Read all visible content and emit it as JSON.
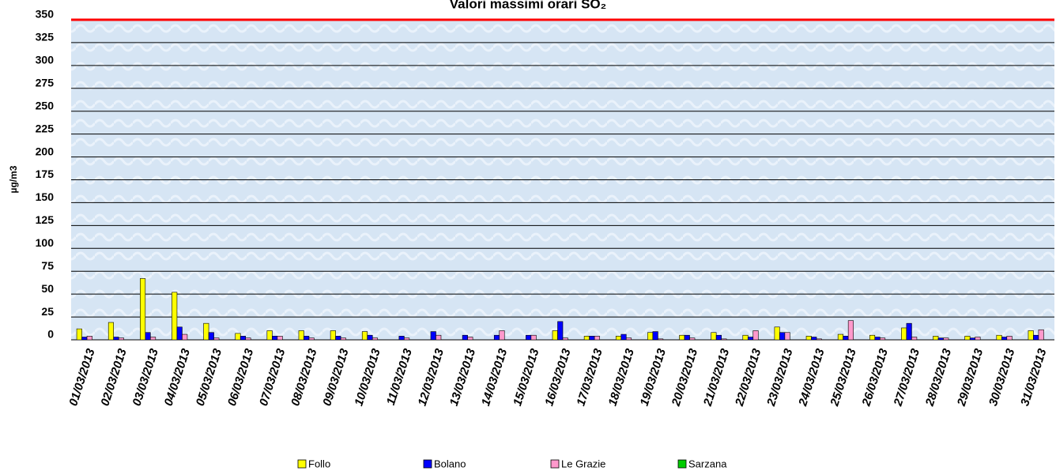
{
  "chart_data": {
    "type": "bar",
    "title": "Valori massimi orari SO₂",
    "y_label": "µg/m3",
    "categories": [
      "01/03/2013",
      "02/03/2013",
      "03/03/2013",
      "04/03/2013",
      "05/03/2013",
      "06/03/2013",
      "07/03/2013",
      "08/03/2013",
      "09/03/2013",
      "10/03/2013",
      "11/03/2013",
      "12/03/2013",
      "13/03/2013",
      "14/03/2013",
      "15/03/2013",
      "16/03/2013",
      "17/03/2013",
      "18/03/2013",
      "19/03/2013",
      "20/03/2013",
      "21/03/2013",
      "22/03/2013",
      "23/03/2013",
      "24/03/2013",
      "25/03/2013",
      "26/03/2013",
      "27/03/2013",
      "28/03/2013",
      "29/03/2013",
      "30/03/2013",
      "31/03/2013"
    ],
    "series": [
      {
        "name": "Follo",
        "color": "#ffff00",
        "values": [
          12,
          19,
          67,
          52,
          18,
          7,
          10,
          10,
          10,
          9,
          null,
          null,
          null,
          null,
          null,
          10,
          4,
          4,
          8,
          5,
          8,
          5,
          14,
          4,
          6,
          5,
          13,
          4,
          4,
          5,
          10
        ]
      },
      {
        "name": "Bolano",
        "color": "#0000ff",
        "values": [
          3,
          3,
          8,
          14,
          8,
          4,
          4,
          4,
          4,
          5,
          4,
          9,
          5,
          5,
          5,
          20,
          4,
          6,
          9,
          5,
          5,
          3,
          8,
          3,
          4,
          3,
          18,
          2,
          2,
          3,
          5
        ]
      },
      {
        "name": "Le Grazie",
        "color": "#ff99cc",
        "values": [
          4,
          2,
          3,
          6,
          2,
          2,
          4,
          2,
          2,
          2,
          2,
          5,
          3,
          10,
          5,
          2,
          4,
          2,
          1,
          2,
          1,
          10,
          8,
          1,
          21,
          2,
          3,
          2,
          3,
          4,
          11
        ]
      },
      {
        "name": "Sarzana",
        "color": "#00cc00",
        "values": [
          null,
          null,
          null,
          null,
          null,
          null,
          null,
          null,
          null,
          null,
          null,
          null,
          null,
          null,
          null,
          null,
          null,
          null,
          null,
          null,
          null,
          null,
          null,
          null,
          null,
          null,
          null,
          null,
          null,
          null,
          null
        ]
      }
    ],
    "ylim": [
      0,
      350
    ],
    "yticks": [
      0,
      25,
      50,
      75,
      100,
      125,
      150,
      175,
      200,
      225,
      250,
      275,
      300,
      325,
      350
    ],
    "grid": true,
    "reference_line": {
      "value": 350,
      "color": "#ff0000"
    },
    "legend": "bottom"
  }
}
